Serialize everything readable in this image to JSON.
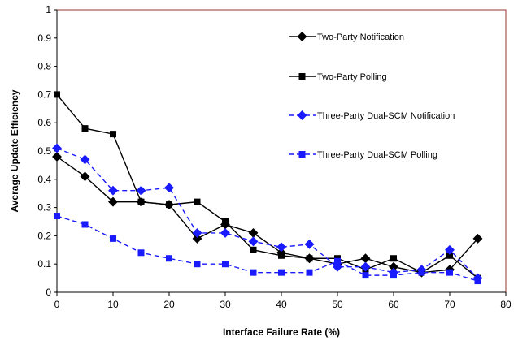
{
  "chart_data": {
    "type": "line",
    "title": "",
    "xlabel": "Interface Failure Rate (%)",
    "ylabel": "Average Update Efficiency",
    "xlim": [
      0,
      80
    ],
    "ylim": [
      0,
      1
    ],
    "x_ticks": [
      0,
      10,
      20,
      30,
      40,
      50,
      60,
      70,
      80
    ],
    "y_ticks": [
      0,
      0.1,
      0.2,
      0.3,
      0.4,
      0.5,
      0.6,
      0.7,
      0.8,
      0.9,
      1
    ],
    "grid": false,
    "legend_position": "top-right (inside plot)",
    "plot_border_color": "#993333",
    "series": [
      {
        "name": "Two-Party Notification",
        "color": "#000000",
        "marker": "diamond",
        "dashed": false,
        "x": [
          0,
          5,
          10,
          15,
          20,
          25,
          30,
          35,
          40,
          45,
          50,
          55,
          60,
          65,
          70,
          75
        ],
        "values": [
          0.48,
          0.41,
          0.32,
          0.32,
          0.31,
          0.19,
          0.24,
          0.21,
          0.14,
          0.12,
          0.1,
          0.12,
          0.09,
          0.07,
          0.08,
          0.19
        ]
      },
      {
        "name": "Two-Party Polling",
        "color": "#000000",
        "marker": "square",
        "dashed": false,
        "x": [
          0,
          5,
          10,
          15,
          20,
          25,
          30,
          35,
          40,
          45,
          50,
          55,
          60,
          65,
          70,
          75
        ],
        "values": [
          0.7,
          0.58,
          0.56,
          0.32,
          0.31,
          0.32,
          0.25,
          0.15,
          0.13,
          0.12,
          0.12,
          0.08,
          0.12,
          0.07,
          0.13,
          0.05
        ]
      },
      {
        "name": "Three-Party Dual-SCM Notification",
        "color": "#1a1aff",
        "marker": "diamond",
        "dashed": true,
        "x": [
          0,
          5,
          10,
          15,
          20,
          25,
          30,
          35,
          40,
          45,
          50,
          55,
          60,
          65,
          70,
          75
        ],
        "values": [
          0.51,
          0.47,
          0.36,
          0.36,
          0.37,
          0.21,
          0.21,
          0.18,
          0.16,
          0.17,
          0.09,
          0.09,
          0.07,
          0.08,
          0.15,
          0.05
        ]
      },
      {
        "name": "Three-Party Dual-SCM Polling",
        "color": "#1a1aff",
        "marker": "square",
        "dashed": true,
        "x": [
          0,
          5,
          10,
          15,
          20,
          25,
          30,
          35,
          40,
          45,
          50,
          55,
          60,
          65,
          70,
          75
        ],
        "values": [
          0.27,
          0.24,
          0.19,
          0.14,
          0.12,
          0.1,
          0.1,
          0.07,
          0.07,
          0.07,
          0.11,
          0.06,
          0.06,
          0.07,
          0.07,
          0.04
        ]
      }
    ]
  }
}
